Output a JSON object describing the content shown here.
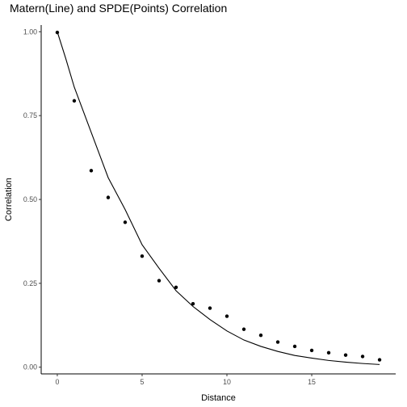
{
  "chart_data": {
    "type": "scatter",
    "title": "Matern(Line) and SPDE(Points) Correlation",
    "xlabel": "Distance",
    "ylabel": "Correlation",
    "xlim": [
      -0.95,
      19.95
    ],
    "ylim": [
      -0.02,
      1.02
    ],
    "x_ticks": [
      0,
      5,
      10,
      15
    ],
    "x_tick_labels": [
      "0",
      "5",
      "10",
      "15"
    ],
    "y_ticks": [
      0.0,
      0.25,
      0.5,
      0.75,
      1.0
    ],
    "y_tick_labels": [
      "0.00",
      "0.25",
      "0.50",
      "0.75",
      "1.00"
    ],
    "grid": false,
    "legend": "none",
    "series": [
      {
        "kind": "line",
        "color": "#000000",
        "x": [
          0,
          0.5,
          1,
          2,
          3,
          4,
          5,
          6,
          7,
          8,
          9,
          10,
          11,
          12,
          13,
          14,
          15,
          16,
          17,
          18,
          19
        ],
        "y": [
          1.0,
          0.92,
          0.835,
          0.7,
          0.565,
          0.47,
          0.365,
          0.295,
          0.228,
          0.181,
          0.142,
          0.108,
          0.081,
          0.062,
          0.047,
          0.035,
          0.027,
          0.02,
          0.015,
          0.011,
          0.008
        ]
      },
      {
        "kind": "points",
        "color": "#000000",
        "x": [
          0,
          1,
          2,
          3,
          4,
          5,
          6,
          7,
          8,
          9,
          10,
          11,
          12,
          13,
          14,
          15,
          16,
          17,
          18,
          19
        ],
        "y": [
          0.998,
          0.794,
          0.586,
          0.506,
          0.432,
          0.331,
          0.258,
          0.238,
          0.189,
          0.176,
          0.152,
          0.113,
          0.095,
          0.075,
          0.062,
          0.05,
          0.043,
          0.036,
          0.032,
          0.022
        ]
      }
    ]
  }
}
